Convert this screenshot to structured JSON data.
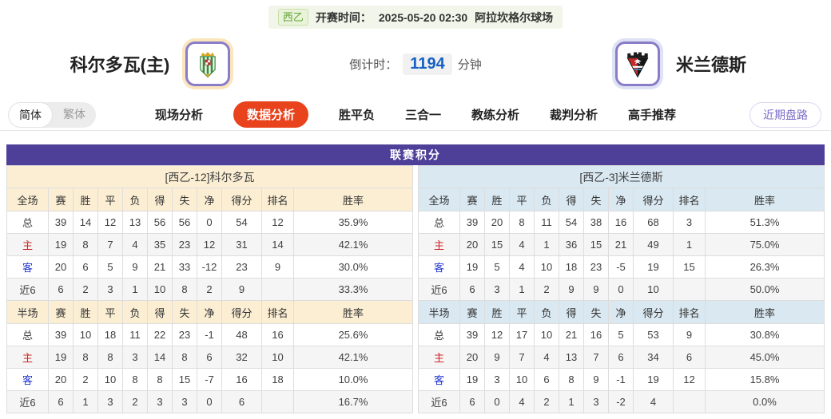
{
  "top_bar": {
    "league_badge": "西乙",
    "kickoff_label": "开赛时间：",
    "kickoff_time": "2025-05-20 02:30",
    "venue": "阿拉坎格尔球场"
  },
  "header": {
    "home_team": "科尔多瓦(主)",
    "away_team": "米兰德斯",
    "countdown_label": "倒计时：",
    "countdown_value": "1194",
    "countdown_unit": "分钟"
  },
  "nav": {
    "lang_toggle": [
      "简体",
      "繁体"
    ],
    "tabs": [
      {
        "label": "现场分析",
        "active": false
      },
      {
        "label": "数据分析",
        "active": true
      },
      {
        "label": "胜平负",
        "active": false
      },
      {
        "label": "三合一",
        "active": false
      },
      {
        "label": "教练分析",
        "active": false
      },
      {
        "label": "裁判分析",
        "active": false
      },
      {
        "label": "高手推荐",
        "active": false
      }
    ],
    "recent_button": "近期盘路"
  },
  "league_table": {
    "title": "联赛积分",
    "columns_full": [
      "全场",
      "赛",
      "胜",
      "平",
      "负",
      "得",
      "失",
      "净",
      "得分",
      "排名",
      "胜率"
    ],
    "columns_half": [
      "半场",
      "赛",
      "胜",
      "平",
      "负",
      "得",
      "失",
      "净",
      "得分",
      "排名",
      "胜率"
    ],
    "home": {
      "header": "[西乙-12]科尔多瓦",
      "full_rows": [
        [
          "总",
          "39",
          "14",
          "12",
          "13",
          "56",
          "56",
          "0",
          "54",
          "12",
          "35.9%"
        ],
        [
          "主",
          "19",
          "8",
          "7",
          "4",
          "35",
          "23",
          "12",
          "31",
          "14",
          "42.1%"
        ],
        [
          "客",
          "20",
          "6",
          "5",
          "9",
          "21",
          "33",
          "-12",
          "23",
          "9",
          "30.0%"
        ],
        [
          "近6",
          "6",
          "2",
          "3",
          "1",
          "10",
          "8",
          "2",
          "9",
          "",
          "33.3%"
        ]
      ],
      "half_rows": [
        [
          "总",
          "39",
          "10",
          "18",
          "11",
          "22",
          "23",
          "-1",
          "48",
          "16",
          "25.6%"
        ],
        [
          "主",
          "19",
          "8",
          "8",
          "3",
          "14",
          "8",
          "6",
          "32",
          "10",
          "42.1%"
        ],
        [
          "客",
          "20",
          "2",
          "10",
          "8",
          "8",
          "15",
          "-7",
          "16",
          "18",
          "10.0%"
        ],
        [
          "近6",
          "6",
          "1",
          "3",
          "2",
          "3",
          "3",
          "0",
          "6",
          "",
          "16.7%"
        ]
      ]
    },
    "away": {
      "header": "[西乙-3]米兰德斯",
      "full_rows": [
        [
          "总",
          "39",
          "20",
          "8",
          "11",
          "54",
          "38",
          "16",
          "68",
          "3",
          "51.3%"
        ],
        [
          "主",
          "20",
          "15",
          "4",
          "1",
          "36",
          "15",
          "21",
          "49",
          "1",
          "75.0%"
        ],
        [
          "客",
          "19",
          "5",
          "4",
          "10",
          "18",
          "23",
          "-5",
          "19",
          "15",
          "26.3%"
        ],
        [
          "近6",
          "6",
          "3",
          "1",
          "2",
          "9",
          "9",
          "0",
          "10",
          "",
          "50.0%"
        ]
      ],
      "half_rows": [
        [
          "总",
          "39",
          "12",
          "17",
          "10",
          "21",
          "16",
          "5",
          "53",
          "9",
          "30.8%"
        ],
        [
          "主",
          "20",
          "9",
          "7",
          "4",
          "13",
          "7",
          "6",
          "34",
          "6",
          "45.0%"
        ],
        [
          "客",
          "19",
          "3",
          "10",
          "6",
          "8",
          "9",
          "-1",
          "19",
          "12",
          "15.8%"
        ],
        [
          "近6",
          "6",
          "0",
          "4",
          "2",
          "1",
          "3",
          "-2",
          "4",
          "",
          "0.0%"
        ]
      ]
    }
  },
  "colors": {
    "title_purple": "#4e3f99",
    "home_section_bg": "#fbeed3",
    "away_section_bg": "#d9e8f1",
    "active_tab_orange": "#e8431c",
    "countdown_blue": "#1760c4",
    "home_row_label_red": "#cf2525",
    "away_row_label_blue": "#2438cf",
    "league_badge_green": "#61a234",
    "recent_button_purple": "#7b6cc9"
  }
}
